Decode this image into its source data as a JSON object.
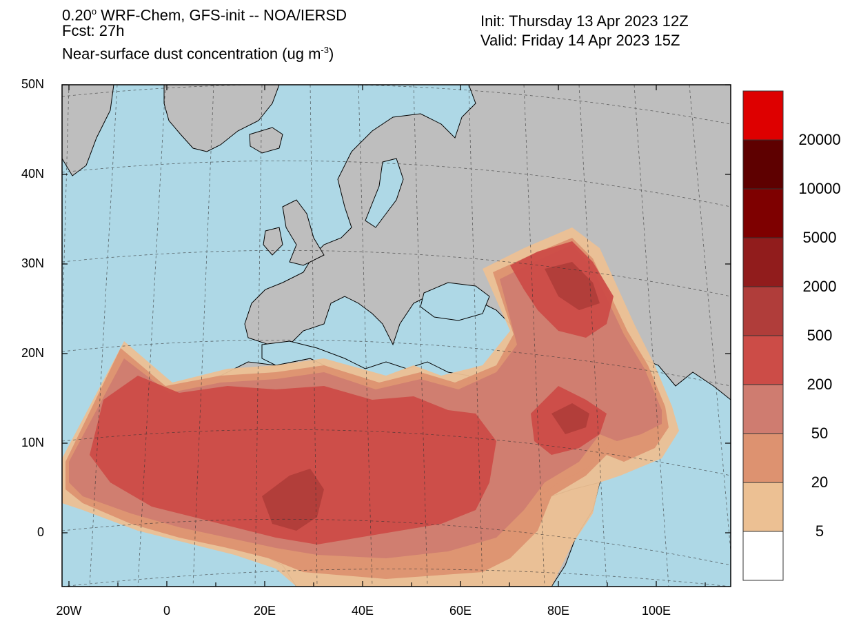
{
  "header": {
    "line1_prefix": "0.20",
    "line1_sup": "o",
    "line1_rest": " WRF-Chem, GFS-init -- NOA/IERSD",
    "line2": "Fcst: 27h",
    "line3_prefix": "Near-surface dust concentration (ug m",
    "line3_sup": "-3",
    "line3_suffix": ")",
    "init": "Init: Thursday 13 Apr 2023  12Z",
    "valid": "Valid: Friday 14 Apr 2023  15Z"
  },
  "axes": {
    "y_ticks": [
      "50N",
      "40N",
      "30N",
      "20N",
      "10N",
      "0"
    ],
    "x_ticks": [
      "20W",
      "0",
      "20E",
      "40E",
      "60E",
      "80E",
      "100E"
    ]
  },
  "colorbar": {
    "labels": [
      "20000",
      "10000",
      "5000",
      "2000",
      "500",
      "200",
      "50",
      "20",
      "5"
    ],
    "colors": [
      "#de0000",
      "#5e0000",
      "#7e0000",
      "#911c1c",
      "#b03d3a",
      "#cc4c47",
      "#cf7c70",
      "#dd9270",
      "#ecc093",
      "#ffffff"
    ]
  },
  "colors": {
    "ocean": "#aed8e6",
    "land": "#bebebe",
    "dust_5": "#ecc093",
    "dust_20": "#dd9270",
    "dust_50": "#cf7c70",
    "dust_200": "#cc4c47",
    "dust_500": "#b03d3a"
  }
}
